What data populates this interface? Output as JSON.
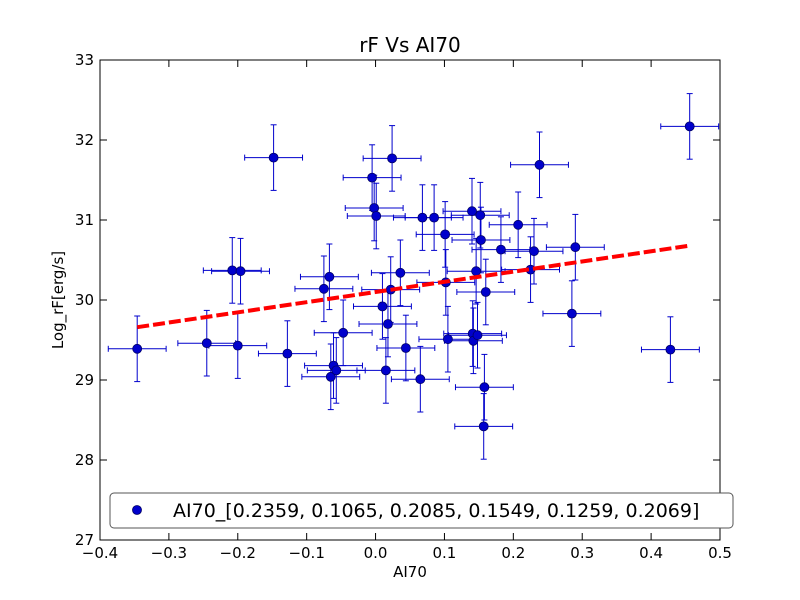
{
  "chart_data": {
    "type": "scatter",
    "title": "rF Vs AI70",
    "xlabel": "AI70",
    "ylabel": "Log_rF[erg/s]",
    "xlim": [
      -0.4,
      0.5
    ],
    "ylim": [
      27,
      33
    ],
    "xticks": [
      -0.4,
      -0.3,
      -0.2,
      -0.1,
      0.0,
      0.1,
      0.2,
      0.3,
      0.4,
      0.5
    ],
    "xtick_labels": [
      "−0.4",
      "−0.3",
      "−0.2",
      "−0.1",
      "0.0",
      "0.1",
      "0.2",
      "0.3",
      "0.4",
      "0.5"
    ],
    "yticks": [
      27,
      28,
      29,
      30,
      31,
      32,
      33
    ],
    "ytick_labels": [
      "27",
      "28",
      "29",
      "30",
      "31",
      "32",
      "33"
    ],
    "grid": false,
    "legend": {
      "position": "bottom",
      "entries": [
        "AI70_[0.2359, 0.1065, 0.2085, 0.1549, 0.1259, 0.2069]"
      ]
    },
    "series": [
      {
        "name": "AI70_[0.2359, 0.1065, 0.2085, 0.1549, 0.1259, 0.2069]",
        "color": "#0000cc",
        "x_error": 0.042,
        "y_error": 0.41,
        "points": [
          [
            -0.346,
            29.39
          ],
          [
            -0.245,
            29.46
          ],
          [
            -0.208,
            30.37
          ],
          [
            -0.2,
            29.43
          ],
          [
            -0.196,
            30.36
          ],
          [
            -0.148,
            31.78
          ],
          [
            -0.128,
            29.33
          ],
          [
            -0.075,
            30.14
          ],
          [
            -0.067,
            30.29
          ],
          [
            -0.065,
            29.04
          ],
          [
            -0.061,
            29.18
          ],
          [
            -0.057,
            29.12
          ],
          [
            -0.047,
            29.59
          ],
          [
            -0.005,
            31.53
          ],
          [
            -0.002,
            31.15
          ],
          [
            0.001,
            31.05
          ],
          [
            0.01,
            29.92
          ],
          [
            0.015,
            29.12
          ],
          [
            0.018,
            29.7
          ],
          [
            0.022,
            30.13
          ],
          [
            0.024,
            31.77
          ],
          [
            0.036,
            30.34
          ],
          [
            0.044,
            29.4
          ],
          [
            0.065,
            29.01
          ],
          [
            0.068,
            31.03
          ],
          [
            0.085,
            31.03
          ],
          [
            0.101,
            30.82
          ],
          [
            0.102,
            30.22
          ],
          [
            0.105,
            29.51
          ],
          [
            0.14,
            31.11
          ],
          [
            0.141,
            29.58
          ],
          [
            0.142,
            29.49
          ],
          [
            0.146,
            30.36
          ],
          [
            0.148,
            29.56
          ],
          [
            0.152,
            31.06
          ],
          [
            0.153,
            30.75
          ],
          [
            0.157,
            28.42
          ],
          [
            0.158,
            28.91
          ],
          [
            0.16,
            30.1
          ],
          [
            0.182,
            30.63
          ],
          [
            0.207,
            30.94
          ],
          [
            0.225,
            30.38
          ],
          [
            0.23,
            30.61
          ],
          [
            0.238,
            31.69
          ],
          [
            0.285,
            29.83
          ],
          [
            0.29,
            30.66
          ],
          [
            0.428,
            29.38
          ],
          [
            0.456,
            32.17
          ]
        ]
      }
    ],
    "fit_line": {
      "style": "dashed",
      "color": "#ff0000",
      "x": [
        -0.346,
        0.456
      ],
      "y": [
        29.66,
        30.68
      ]
    }
  }
}
